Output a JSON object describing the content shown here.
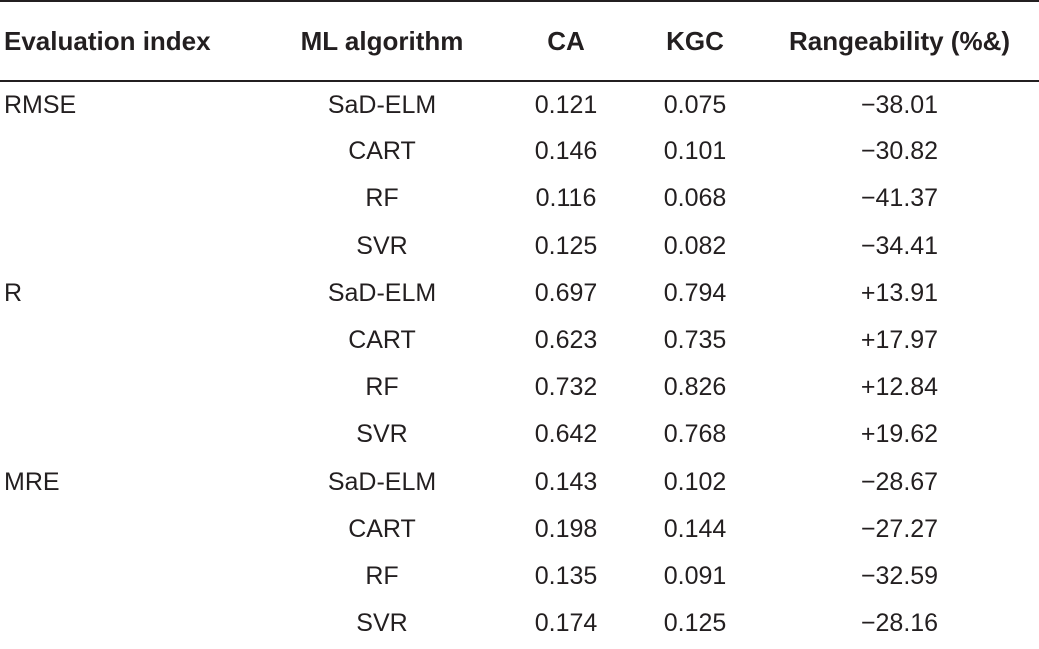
{
  "table": {
    "headers": [
      "Evaluation index",
      "ML algorithm",
      "CA",
      "KGC",
      "Rangeability (%&)"
    ],
    "rows": [
      [
        "RMSE",
        "SaD-ELM",
        "0.121",
        "0.075",
        "−38.01"
      ],
      [
        "",
        "CART",
        "0.146",
        "0.101",
        "−30.82"
      ],
      [
        "",
        "RF",
        "0.116",
        "0.068",
        "−41.37"
      ],
      [
        "",
        "SVR",
        "0.125",
        "0.082",
        "−34.41"
      ],
      [
        "R",
        "SaD-ELM",
        "0.697",
        "0.794",
        "+13.91"
      ],
      [
        "",
        "CART",
        "0.623",
        "0.735",
        "+17.97"
      ],
      [
        "",
        "RF",
        "0.732",
        "0.826",
        "+12.84"
      ],
      [
        "",
        "SVR",
        "0.642",
        "0.768",
        "+19.62"
      ],
      [
        "MRE",
        "SaD-ELM",
        "0.143",
        "0.102",
        "−28.67"
      ],
      [
        "",
        "CART",
        "0.198",
        "0.144",
        "−27.27"
      ],
      [
        "",
        "RF",
        "0.135",
        "0.091",
        "−32.59"
      ],
      [
        "",
        "SVR",
        "0.174",
        "0.125",
        "−28.16"
      ]
    ]
  }
}
